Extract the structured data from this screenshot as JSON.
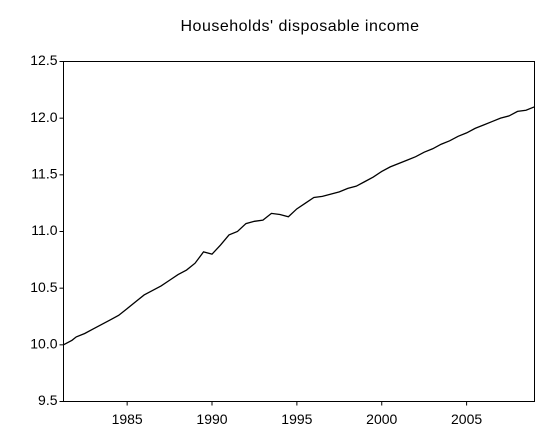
{
  "chart_data": {
    "type": "line",
    "title": "Households' disposable income",
    "x": [
      1981.25,
      1981.75,
      1982,
      1982.5,
      1983,
      1983.5,
      1984,
      1984.5,
      1985,
      1985.5,
      1986,
      1986.5,
      1987,
      1987.5,
      1988,
      1988.5,
      1989,
      1989.5,
      1990,
      1990.5,
      1991,
      1991.5,
      1992,
      1992.5,
      1993,
      1993.5,
      1994,
      1994.5,
      1995,
      1995.5,
      1996,
      1996.5,
      1997,
      1997.5,
      1998,
      1998.5,
      1999,
      1999.5,
      2000,
      2000.5,
      2001,
      2001.5,
      2002,
      2002.5,
      2003,
      2003.5,
      2004,
      2004.5,
      2005,
      2005.5,
      2006,
      2006.5,
      2007,
      2007.5,
      2008,
      2008.5,
      2009
    ],
    "values": [
      10.0,
      10.04,
      10.07,
      10.1,
      10.14,
      10.18,
      10.22,
      10.26,
      10.32,
      10.38,
      10.44,
      10.48,
      10.52,
      10.57,
      10.62,
      10.66,
      10.72,
      10.82,
      10.8,
      10.88,
      10.97,
      11.0,
      11.07,
      11.09,
      11.1,
      11.16,
      11.15,
      11.13,
      11.2,
      11.25,
      11.3,
      11.31,
      11.33,
      11.35,
      11.38,
      11.4,
      11.44,
      11.48,
      11.53,
      11.57,
      11.6,
      11.63,
      11.66,
      11.7,
      11.73,
      11.77,
      11.8,
      11.84,
      11.87,
      11.91,
      11.94,
      11.97,
      12.0,
      12.02,
      12.06,
      12.07,
      12.1
    ],
    "color": "#000000",
    "xlim": [
      1981.25,
      2009
    ],
    "xticks": [
      1985,
      1990,
      1995,
      2000,
      2005
    ],
    "ylim": [
      9.5,
      12.5
    ],
    "yticks": [
      9.5,
      {
        "value": 10,
        "label": "10.0"
      },
      10.5,
      {
        "value": 11,
        "label": "11.0"
      },
      11.5,
      {
        "value": 12,
        "label": "12.0"
      },
      12.5
    ],
    "grid": false
  }
}
